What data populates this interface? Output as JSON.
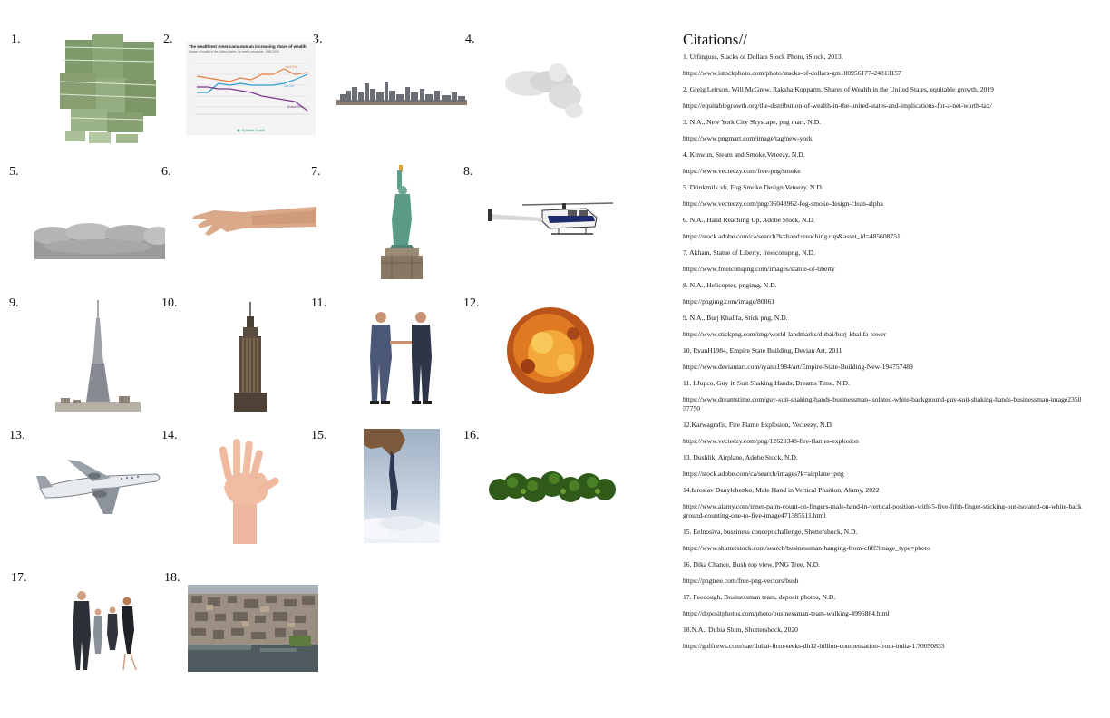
{
  "numbers": [
    "1.",
    "2.",
    "3.",
    "4.",
    "5.",
    "6.",
    "7.",
    "8.",
    "9.",
    "10.",
    "11.",
    "12.",
    "13.",
    "14.",
    "15.",
    "16.",
    "17.",
    "18."
  ],
  "chart_card": {
    "title": "The wealthiest Americans own an increasing share of wealth",
    "subtitle": "Shares of wealth in the United States, by wealth percentile, 1989-2018",
    "labels": {
      "top": "Next 9%",
      "mid": "Top 1%",
      "bottom": "Bottom 90%"
    },
    "footer": "Equitable Growth"
  },
  "citations_title": "Citations//",
  "citations": [
    "1. Urfinguss, Stacks of Dollars Stock Photo, iStock, 2013,",
    "https://www.istockphoto.com/photo/stacks-of-dollars-gm180956177-24813157",
    "2. Greig Leirson, Will McGrew, Raksha Kopparm, Shares of Wealth in the United States, equitable growth, 2019",
    "https://equitablegrowth.org/the-distribution-of-wealth-in-the-united-states-and-implications-for-a-net-worth-tax/",
    "3. N.A., New York City Skyscape, png mart, N.D.",
    "https://www.pngmart.com/image/tag/new-york",
    "4. Kinwun, Steam and Smoke,Veteezy, N.D.",
    "https://www.vecteezy.com/free-png/smoke",
    "5. Drinkmilk.vh, Fog Smoke Design,Veteezy, N.D.",
    "https://www.vecteezy.com/png/36048962-fog-smoke-design-clean-alpha",
    "6. N.A., Hand Reaching Up, Adobe Stock, N.D.",
    "https://stock.adobe.com/ca/search?k=hand+reaching+up&asset_id=485608751",
    "7. Akham, Statue of Liberty, freeiconspng, N.D.",
    "https://www.freeiconspng.com/images/statue-of-liberty",
    "8. N.A., Helicopter, pngimg, N.D.",
    "https://pngimg.com/image/80061",
    "9. N.A., Burj Khalifa, Stick png, N.D.",
    "https://www.stickpng.com/img/world-landmarks/dubai/burj-khalifa-tower",
    "10. RyanH1984, Empire State Building, Devian Art, 2011",
    "https://www.deviantart.com/ryanh1984/art/Empire-State-Building-New-194757489",
    "11. LJupco, Guy in Suit Shaking Hands, Dreams Time, N.D.",
    "https://www.dreamstime.com/guy-suit-shaking-hands-businessman-isolated-white-background-guy-suit-shaking-hands-businessman-image235057750",
    "12.Karwagrafis, Fire Flame Explosion, Vecteezy, N.D.",
    "https://www.vecteezy.com/png/12629348-fire-flames-explosion",
    "13. Dushlik, Airplane, Adobe Stock, N.D.",
    "https://stock.adobe.com/ca/search/images?k=airplane+png",
    "14.Iaroslav Danylchenko, Male Hand in Vertical Position, Alamy, 2022",
    " https://www.alamy.com/inner-palm-count-on-fingers-male-hand-in-vertical-position-with-5-five-fifth-finger-sticking-out-isolated-on-white-background-counting-one-to-five-image471385511.html",
    "15. Eelnosiva, bussiness concept challenge, Shuttershock, N.D.",
    "https://www.shutterstock.com/search/businessman-hanging-from-cliff?image_type=photo",
    "16. Dika Chance, Bush top view, PNG Tree, N.D.",
    "https://pngtree.com/free-png-vectors/bush",
    "17. Feedough, Businessman team, deposit photos, N.D.",
    " https://depositphotos.com/photo/businessman-team-walking-4996884.html",
    "18.N.A., Dubia Slum, Shuttershock, 2020",
    "https://gulfnews.com/uae/dubai-firm-seeks-dh12-billion-compensation-from-india-1.70050833"
  ]
}
